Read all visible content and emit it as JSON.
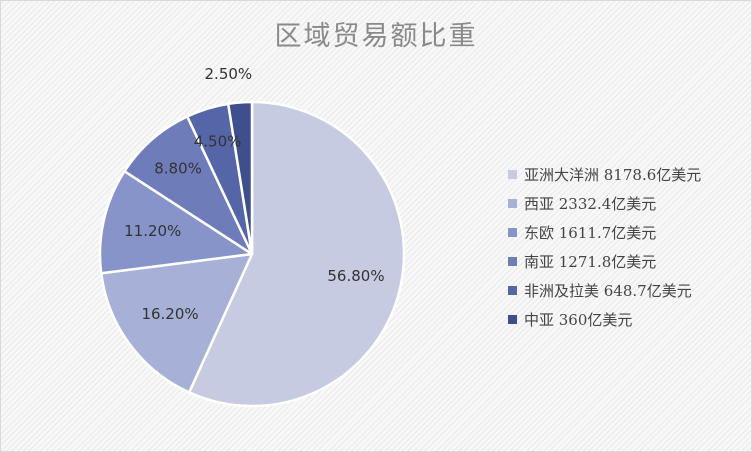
{
  "chart_data": {
    "type": "pie",
    "title": "区域贸易额比重",
    "slices": [
      {
        "name": "亚洲大洋洲",
        "legend": "亚洲大洋洲 8178.6亿美元",
        "value": 8178.6,
        "percent_label": "56.80%",
        "color": "#c7cbe2"
      },
      {
        "name": "西亚",
        "legend": "西亚 2332.4亿美元",
        "value": 2332.4,
        "percent_label": "16.20%",
        "color": "#a7b0d6"
      },
      {
        "name": "东欧",
        "legend": "东欧 1611.7亿美元",
        "value": 1611.7,
        "percent_label": "11.20%",
        "color": "#8794c9"
      },
      {
        "name": "南亚",
        "legend": "南亚 1271.8亿美元",
        "value": 1271.8,
        "percent_label": "8.80%",
        "color": "#6e7dba"
      },
      {
        "name": "非洲及拉美",
        "legend": "非洲及拉美 648.7亿美元",
        "value": 648.7,
        "percent_label": "4.50%",
        "color": "#5566a8"
      },
      {
        "name": "中亚",
        "legend": "中亚 360亿美元",
        "value": 360,
        "percent_label": "2.50%",
        "color": "#3f4f8c"
      }
    ],
    "legend_position": "right"
  }
}
